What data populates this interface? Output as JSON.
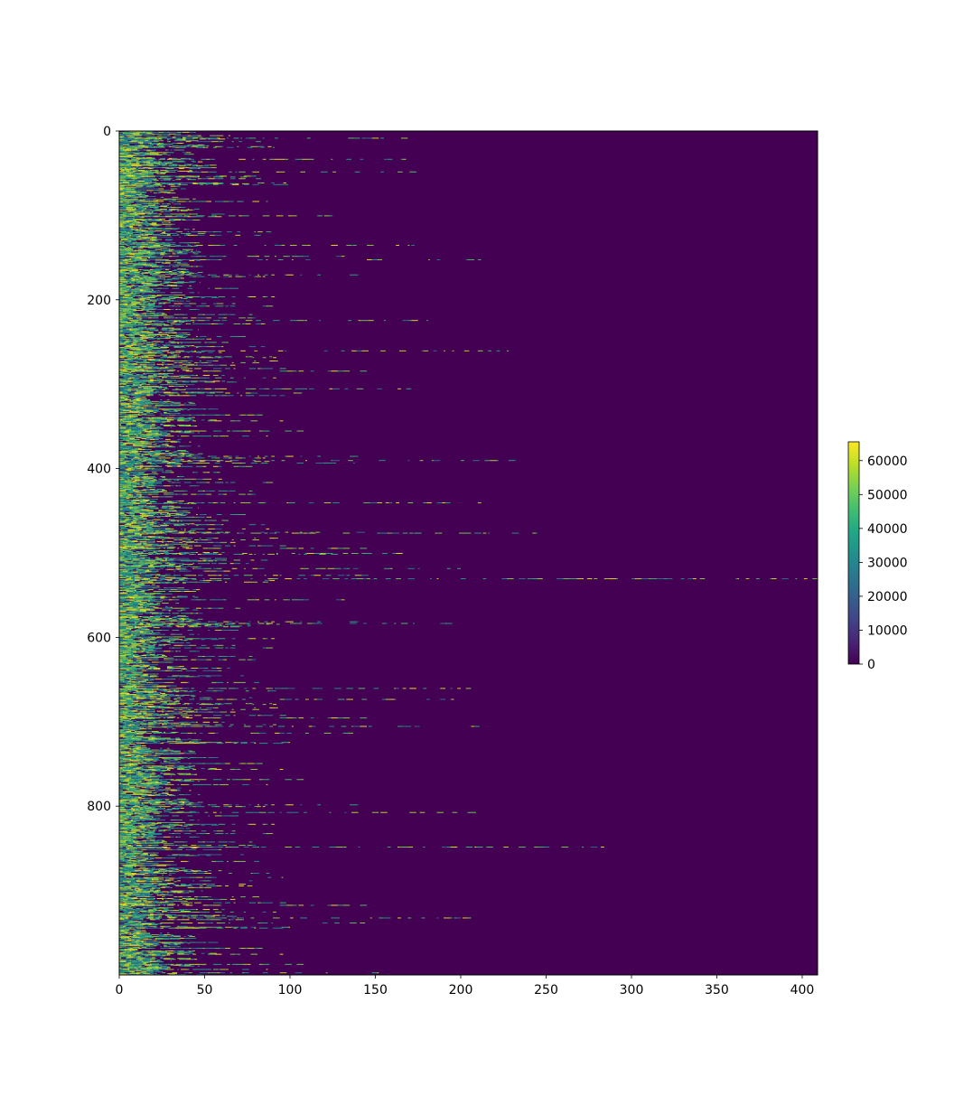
{
  "chart_data": {
    "type": "heatmap",
    "title": "",
    "xlabel": "",
    "ylabel": "",
    "xlim": [
      0,
      409
    ],
    "ylim": [
      1000,
      0
    ],
    "x_ticks": [
      "0",
      "50",
      "100",
      "150",
      "200",
      "250",
      "300",
      "350",
      "400"
    ],
    "y_ticks": [
      "0",
      "200",
      "400",
      "600",
      "800"
    ],
    "colormap": "viridis",
    "colorbar": {
      "min": 0,
      "max": 65535,
      "ticks": [
        "0",
        "10000",
        "20000",
        "30000",
        "40000",
        "50000",
        "60000"
      ]
    },
    "background_value": 0,
    "background_color": "#440154",
    "grid": false,
    "rows": 1000,
    "columns": 409,
    "row_length_notes": "Each row is a sequence of high values (0-65535, mostly yellow/green) starting at column 0; lengths mostly 10-60, with occasional long rows; the longest row (near row 530) spans all 409 columns; remaining cells are 0.",
    "notable_row_extents": [
      {
        "row": 5,
        "extent": 65
      },
      {
        "row": 8,
        "extent": 175
      },
      {
        "row": 33,
        "extent": 170
      },
      {
        "row": 48,
        "extent": 174
      },
      {
        "row": 135,
        "extent": 177
      },
      {
        "row": 152,
        "extent": 212
      },
      {
        "row": 224,
        "extent": 181
      },
      {
        "row": 260,
        "extent": 231
      },
      {
        "row": 305,
        "extent": 187
      },
      {
        "row": 390,
        "extent": 233
      },
      {
        "row": 440,
        "extent": 216
      },
      {
        "row": 476,
        "extent": 247
      },
      {
        "row": 500,
        "extent": 183
      },
      {
        "row": 518,
        "extent": 219
      },
      {
        "row": 530,
        "extent": 409
      },
      {
        "row": 583,
        "extent": 195
      },
      {
        "row": 660,
        "extent": 215
      },
      {
        "row": 673,
        "extent": 201
      },
      {
        "row": 705,
        "extent": 231
      },
      {
        "row": 807,
        "extent": 209
      },
      {
        "row": 848,
        "extent": 289
      },
      {
        "row": 932,
        "extent": 209
      },
      {
        "row": 997,
        "extent": 152
      }
    ]
  }
}
